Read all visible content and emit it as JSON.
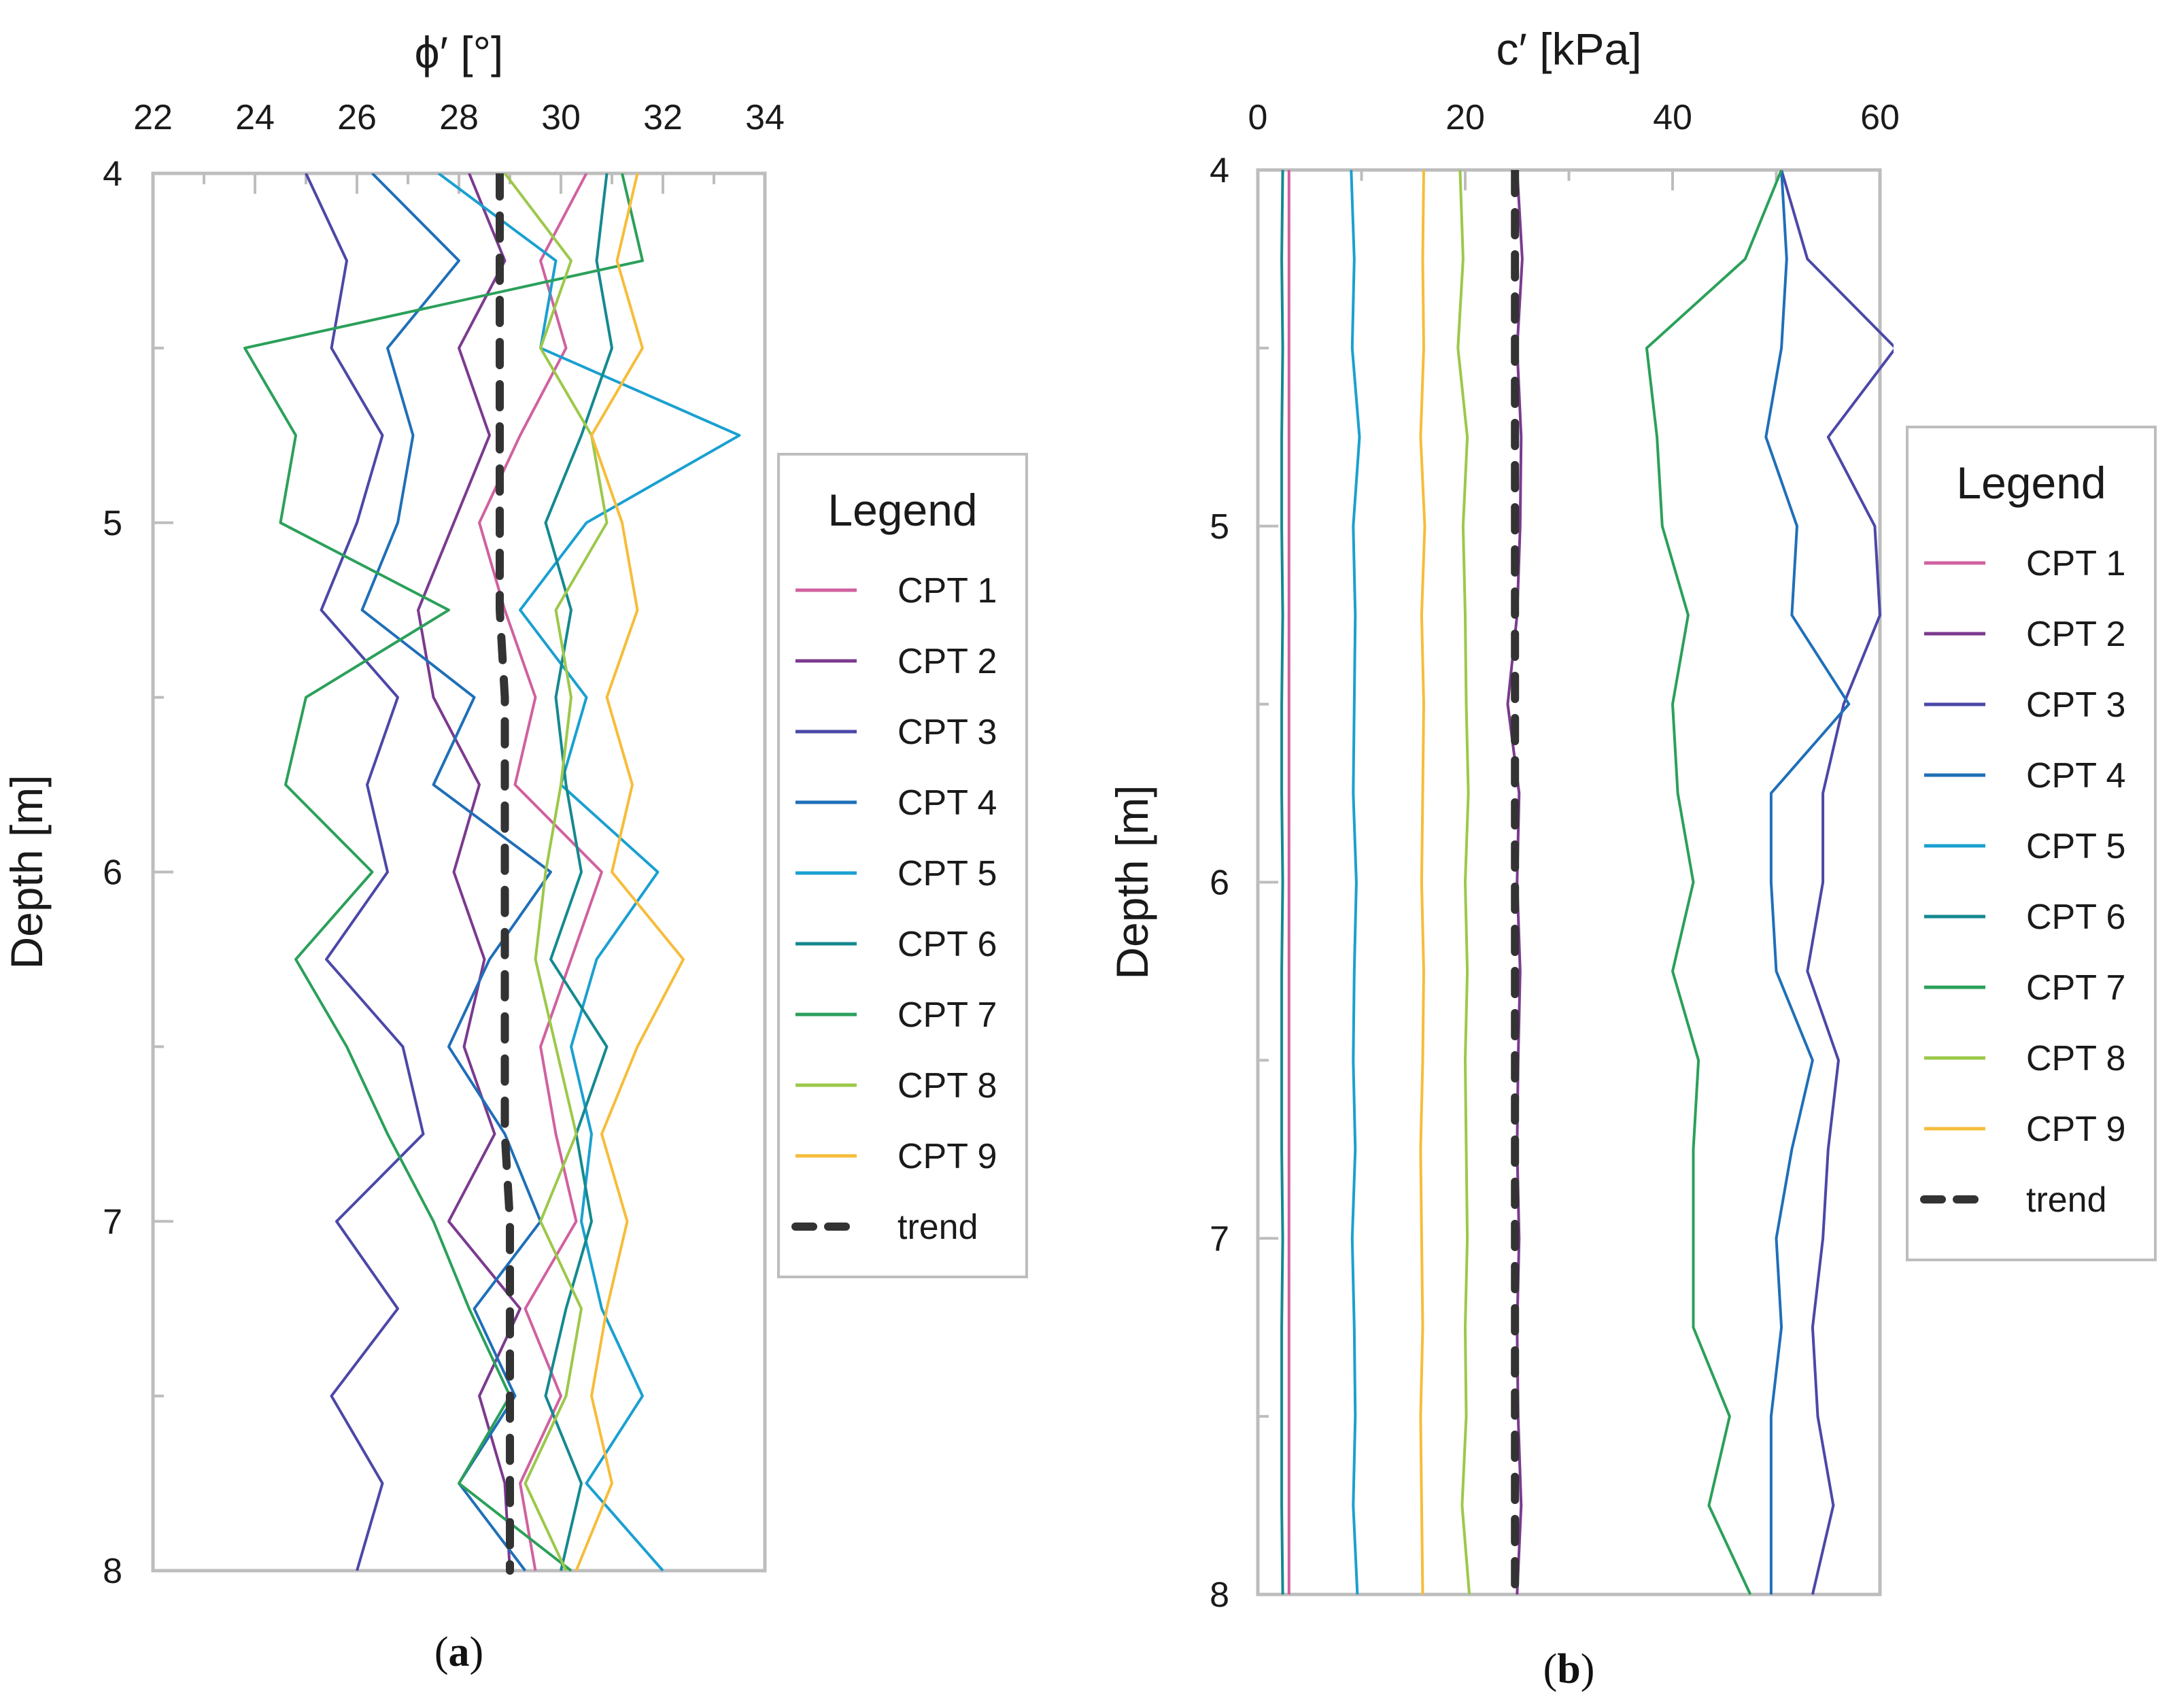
{
  "chart_data": [
    {
      "type": "line",
      "panel": "a",
      "caption": [
        "(",
        "a",
        ")"
      ],
      "xlabel": "ϕ′ [°]",
      "ylabel": "Depth [m]",
      "xlim": [
        22,
        34
      ],
      "ylim": [
        4,
        8
      ],
      "y_inverted": true,
      "x_axis_position": "top",
      "xticks": [
        22,
        24,
        26,
        28,
        30,
        32,
        34
      ],
      "yticks": [
        4,
        5,
        6,
        7,
        8
      ],
      "legend": {
        "title": "Legend",
        "placement": "right"
      },
      "depth": [
        4.0,
        4.25,
        4.5,
        4.75,
        5.0,
        5.25,
        5.5,
        5.75,
        6.0,
        6.25,
        6.5,
        6.75,
        7.0,
        7.25,
        7.5,
        7.75,
        8.0
      ],
      "series": [
        {
          "name": "CPT 1",
          "color": "#d0619f",
          "dashed": false,
          "values": [
            30.5,
            29.6,
            30.1,
            29.2,
            28.4,
            28.9,
            29.5,
            29.1,
            30.8,
            30.2,
            29.6,
            29.9,
            30.3,
            29.3,
            30.0,
            29.2,
            29.5
          ]
        },
        {
          "name": "CPT 2",
          "color": "#7b3a8e",
          "dashed": false,
          "values": [
            28.2,
            28.9,
            28.0,
            28.6,
            27.9,
            27.2,
            27.5,
            28.4,
            27.9,
            28.5,
            28.1,
            28.7,
            27.8,
            29.2,
            28.4,
            28.9,
            29.0
          ]
        },
        {
          "name": "CPT 3",
          "color": "#4b48a8",
          "dashed": false,
          "values": [
            25.0,
            25.8,
            25.5,
            26.5,
            26.0,
            25.3,
            26.8,
            26.2,
            26.6,
            25.4,
            26.9,
            27.3,
            25.6,
            26.8,
            25.5,
            26.5,
            26.0
          ]
        },
        {
          "name": "CPT 4",
          "color": "#1f6fb8",
          "dashed": false,
          "values": [
            26.3,
            28.0,
            26.6,
            27.1,
            26.8,
            26.1,
            28.3,
            27.5,
            29.8,
            28.6,
            27.8,
            28.9,
            29.6,
            28.3,
            29.1,
            28.0,
            29.3
          ]
        },
        {
          "name": "CPT 5",
          "color": "#1aa0d0",
          "dashed": false,
          "values": [
            27.6,
            29.9,
            29.6,
            33.5,
            30.5,
            29.2,
            30.5,
            30.0,
            31.9,
            30.7,
            30.2,
            30.6,
            30.4,
            30.8,
            31.6,
            30.5,
            32.0
          ]
        },
        {
          "name": "CPT 6",
          "color": "#14898f",
          "dashed": false,
          "values": [
            30.9,
            30.7,
            31.0,
            30.4,
            29.7,
            30.2,
            29.9,
            30.1,
            30.4,
            29.8,
            30.9,
            30.3,
            30.6,
            30.1,
            29.7,
            30.4,
            30.0
          ]
        },
        {
          "name": "CPT 7",
          "color": "#2ba05a",
          "dashed": false,
          "values": [
            31.2,
            31.6,
            23.8,
            24.8,
            24.5,
            27.8,
            25.0,
            24.6,
            26.3,
            24.8,
            25.8,
            26.6,
            27.5,
            28.2,
            29.0,
            28.0,
            30.2
          ]
        },
        {
          "name": "CPT 8",
          "color": "#9cc84a",
          "dashed": false,
          "values": [
            28.9,
            30.2,
            29.6,
            30.6,
            30.9,
            29.9,
            30.2,
            30.0,
            29.7,
            29.5,
            29.9,
            30.3,
            29.6,
            30.4,
            30.1,
            29.3,
            30.1
          ]
        },
        {
          "name": "CPT 9",
          "color": "#f6bd3a",
          "dashed": false,
          "values": [
            31.5,
            31.1,
            31.6,
            30.6,
            31.2,
            31.5,
            30.9,
            31.4,
            31.0,
            32.4,
            31.5,
            30.8,
            31.3,
            30.9,
            30.6,
            31.0,
            30.3
          ]
        },
        {
          "name": "trend",
          "color": "#333333",
          "dashed": true,
          "values": [
            28.8,
            28.8,
            28.8,
            28.8,
            28.8,
            28.8,
            28.9,
            28.9,
            28.9,
            28.9,
            28.9,
            28.9,
            29.0,
            29.0,
            29.0,
            29.0,
            29.0
          ]
        }
      ]
    },
    {
      "type": "line",
      "panel": "b",
      "caption": [
        "(",
        "b",
        ")"
      ],
      "xlabel": "c′ [kPa]",
      "ylabel": "Depth [m]",
      "xlim": [
        0,
        60
      ],
      "ylim": [
        4,
        8
      ],
      "y_inverted": true,
      "x_axis_position": "top",
      "xticks": [
        0,
        20,
        40,
        60
      ],
      "yticks": [
        4,
        5,
        6,
        7,
        8
      ],
      "legend": {
        "title": "Legend",
        "placement": "right"
      },
      "depth": [
        4.0,
        4.25,
        4.5,
        4.75,
        5.0,
        5.25,
        5.5,
        5.75,
        6.0,
        6.25,
        6.5,
        6.75,
        7.0,
        7.25,
        7.5,
        7.75,
        8.0
      ],
      "series": [
        {
          "name": "CPT 1",
          "color": "#d0619f",
          "dashed": false,
          "values": [
            3.0,
            3.0,
            3.0,
            3.0,
            3.0,
            3.0,
            3.0,
            3.0,
            3.0,
            3.0,
            3.0,
            3.0,
            3.0,
            3.0,
            3.0,
            3.0,
            3.0
          ]
        },
        {
          "name": "CPT 2",
          "color": "#7b3a8e",
          "dashed": false,
          "values": [
            25.0,
            25.5,
            25.0,
            25.4,
            25.3,
            25.0,
            24.1,
            25.2,
            25.0,
            25.3,
            25.1,
            25.0,
            25.2,
            25.0,
            25.1,
            25.4,
            25.0
          ]
        },
        {
          "name": "CPT 3",
          "color": "#4b48a8",
          "dashed": false,
          "values": [
            50.5,
            53.0,
            61.5,
            55.0,
            59.5,
            60.0,
            56.5,
            54.5,
            54.5,
            53.0,
            56.0,
            55.0,
            54.5,
            53.5,
            54.0,
            55.5,
            53.5
          ]
        },
        {
          "name": "CPT 4",
          "color": "#1f6fb8",
          "dashed": false,
          "values": [
            50.5,
            51.0,
            50.5,
            49.0,
            52.0,
            51.5,
            57.0,
            49.5,
            49.5,
            50.0,
            53.5,
            51.5,
            50.0,
            50.5,
            49.5,
            49.5,
            49.5
          ]
        },
        {
          "name": "CPT 5",
          "color": "#1aa0d0",
          "dashed": false,
          "values": [
            9.0,
            9.3,
            9.1,
            9.8,
            9.2,
            9.4,
            9.3,
            9.2,
            9.5,
            9.3,
            9.2,
            9.4,
            9.1,
            9.3,
            9.4,
            9.2,
            9.6
          ]
        },
        {
          "name": "CPT 6",
          "color": "#14898f",
          "dashed": false,
          "values": [
            2.4,
            2.3,
            2.4,
            2.3,
            2.3,
            2.4,
            2.3,
            2.3,
            2.4,
            2.3,
            2.3,
            2.3,
            2.4,
            2.3,
            2.3,
            2.3,
            2.4
          ]
        },
        {
          "name": "CPT 7",
          "color": "#2ba05a",
          "dashed": false,
          "values": [
            50.5,
            47.0,
            37.5,
            38.5,
            39.0,
            41.5,
            40.0,
            40.5,
            42.0,
            40.0,
            42.5,
            42.0,
            42.0,
            42.0,
            45.5,
            43.5,
            47.5
          ]
        },
        {
          "name": "CPT 8",
          "color": "#9cc84a",
          "dashed": false,
          "values": [
            19.5,
            19.8,
            19.3,
            20.2,
            19.8,
            20.0,
            20.1,
            20.3,
            20.0,
            20.2,
            20.0,
            20.1,
            20.2,
            20.0,
            20.1,
            19.7,
            20.4
          ]
        },
        {
          "name": "CPT 9",
          "color": "#f6bd3a",
          "dashed": false,
          "values": [
            16.0,
            15.9,
            16.0,
            15.7,
            16.1,
            15.8,
            16.0,
            15.9,
            15.8,
            16.0,
            15.9,
            15.7,
            15.8,
            15.9,
            15.7,
            15.8,
            15.9
          ]
        },
        {
          "name": "trend",
          "color": "#333333",
          "dashed": true,
          "values": [
            24.8,
            24.8,
            24.8,
            24.8,
            24.8,
            24.8,
            24.8,
            24.8,
            24.8,
            24.8,
            24.8,
            24.8,
            24.8,
            24.8,
            24.8,
            24.8,
            24.8
          ]
        }
      ]
    }
  ]
}
